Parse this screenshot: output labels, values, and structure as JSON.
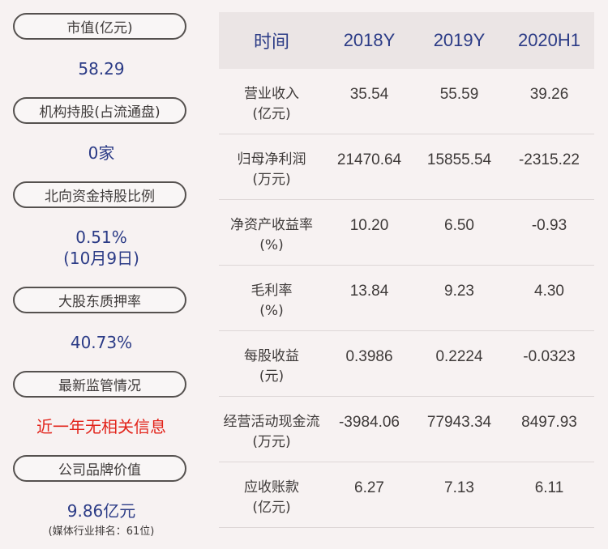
{
  "left_panel": {
    "market_value_label": "市值(亿元)",
    "market_value": "58.29",
    "inst_holding_label": "机构持股(占流通盘)",
    "inst_holding": "0家",
    "northbound_label": "北向资金持股比例",
    "northbound_value": "0.51%",
    "northbound_date": "(10月9日)",
    "pledge_label": "大股东质押率",
    "pledge_value": "40.73%",
    "regulation_label": "最新监管情况",
    "regulation_value": "近一年无相关信息",
    "brand_label": "公司品牌价值",
    "brand_value": "9.86亿元",
    "brand_rank_note": "(媒体行业排名：61位)",
    "highlight_color": "#e2231a",
    "value_color": "#2b3b86"
  },
  "table": {
    "headers": [
      "时间",
      "2018Y",
      "2019Y",
      "2020H1"
    ],
    "rows": [
      {
        "label_line1": "营业收入",
        "label_line2": "(亿元)",
        "values": [
          "35.54",
          "55.59",
          "39.26"
        ]
      },
      {
        "label_line1": "归母净利润",
        "label_line2": "(万元)",
        "values": [
          "21470.64",
          "15855.54",
          "-2315.22"
        ]
      },
      {
        "label_line1": "净资产收益率",
        "label_line2": "(%)",
        "values": [
          "10.20",
          "6.50",
          "-0.93"
        ]
      },
      {
        "label_line1": "毛利率",
        "label_line2": "(%)",
        "values": [
          "13.84",
          "9.23",
          "4.30"
        ]
      },
      {
        "label_line1": "每股收益",
        "label_line2": "(元)",
        "values": [
          "0.3986",
          "0.2224",
          "-0.0323"
        ]
      },
      {
        "label_line1": "经营活动现金流",
        "label_line2": "(万元)",
        "values": [
          "-3984.06",
          "77943.34",
          "8497.93"
        ]
      },
      {
        "label_line1": "应收账款",
        "label_line2": "(亿元)",
        "values": [
          "6.27",
          "7.13",
          "6.11"
        ]
      }
    ]
  }
}
